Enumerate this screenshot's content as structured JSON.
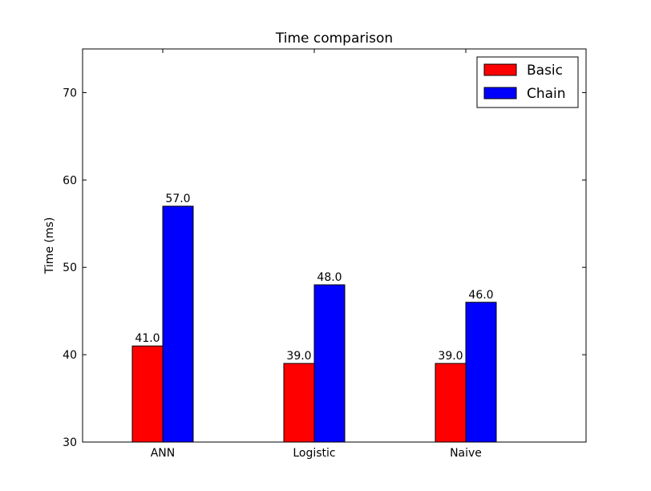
{
  "chart_data": {
    "type": "bar",
    "title": "Time comparison",
    "xlabel": "",
    "ylabel": "Time (ms)",
    "categories": [
      "ANN",
      "Logistic",
      "Naive"
    ],
    "series": [
      {
        "name": "Basic",
        "color": "#ff0000",
        "values": [
          41.0,
          39.0,
          39.0
        ],
        "value_labels": [
          "41.0",
          "39.0",
          "39.0"
        ]
      },
      {
        "name": "Chain",
        "color": "#0000ff",
        "values": [
          57.0,
          48.0,
          46.0
        ],
        "value_labels": [
          "57.0",
          "48.0",
          "46.0"
        ]
      }
    ],
    "ylim": [
      30,
      75
    ],
    "yticks": [
      30,
      40,
      50,
      60,
      70
    ],
    "grid": false,
    "legend_position": "top-right"
  }
}
